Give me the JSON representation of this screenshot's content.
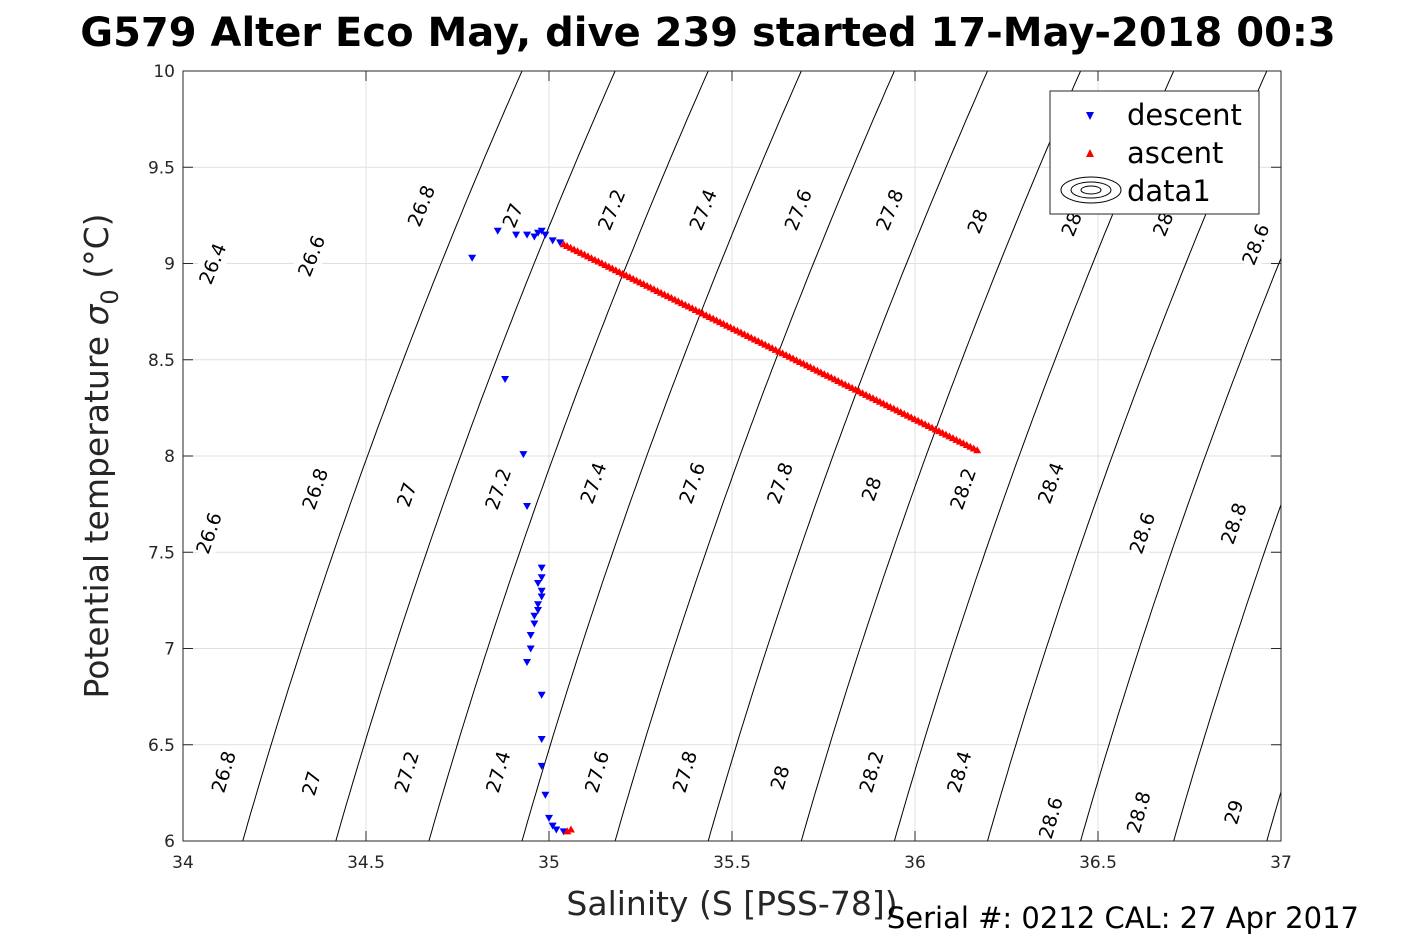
{
  "chart_data": {
    "type": "scatter",
    "title": "G579 Alter Eco May, dive 239 started 17-May-2018 00:3",
    "xlabel": "Salinity (S [PSS-78])",
    "ylabel_main": "Potential temperature ",
    "ylabel_sigma": "σ",
    "ylabel_sub": "0",
    "ylabel_unit": " (°C)",
    "xlim": [
      34,
      37
    ],
    "ylim": [
      6,
      10
    ],
    "xticks": [
      34,
      34.5,
      35,
      35.5,
      36,
      36.5,
      37
    ],
    "xtick_labels": [
      "34",
      "34.5",
      "35",
      "35.5",
      "36",
      "36.5",
      "37"
    ],
    "yticks": [
      6,
      6.5,
      7,
      7.5,
      8,
      8.5,
      9,
      9.5,
      10
    ],
    "ytick_labels": [
      "6",
      "6.5",
      "7",
      "7.5",
      "8",
      "8.5",
      "9",
      "9.5",
      "10"
    ],
    "grid": true,
    "legend_position": "top-right",
    "footer": "Serial #: 0212  CAL: 27 Apr 2017",
    "colors": {
      "descent": "#0000ff",
      "ascent": "#ff0000",
      "contour": "#000000",
      "grid": "#e0e0e0"
    },
    "series": [
      {
        "name": "descent",
        "marker": "triangle-down",
        "points": [
          [
            34.79,
            9.03
          ],
          [
            34.86,
            9.17
          ],
          [
            34.91,
            9.15
          ],
          [
            34.94,
            9.15
          ],
          [
            34.96,
            9.14
          ],
          [
            34.97,
            9.16
          ],
          [
            34.98,
            9.17
          ],
          [
            34.99,
            9.15
          ],
          [
            35.01,
            9.12
          ],
          [
            35.03,
            9.11
          ],
          [
            34.88,
            8.4
          ],
          [
            34.93,
            8.01
          ],
          [
            34.94,
            7.74
          ],
          [
            34.98,
            7.42
          ],
          [
            34.98,
            7.37
          ],
          [
            34.97,
            7.34
          ],
          [
            34.98,
            7.3
          ],
          [
            34.98,
            7.27
          ],
          [
            34.97,
            7.23
          ],
          [
            34.97,
            7.2
          ],
          [
            34.96,
            7.17
          ],
          [
            34.96,
            7.13
          ],
          [
            34.95,
            7.07
          ],
          [
            34.95,
            7.0
          ],
          [
            34.94,
            6.93
          ],
          [
            34.98,
            6.76
          ],
          [
            34.98,
            6.53
          ],
          [
            34.98,
            6.39
          ],
          [
            34.99,
            6.24
          ],
          [
            35.0,
            6.12
          ],
          [
            35.01,
            6.08
          ],
          [
            35.02,
            6.06
          ],
          [
            35.04,
            6.05
          ]
        ]
      },
      {
        "name": "ascent",
        "marker": "triangle-up",
        "from": [
          35.04,
          9.1
        ],
        "to": [
          36.17,
          8.03
        ],
        "count": 120,
        "extra_points": [
          [
            35.06,
            6.06
          ],
          [
            35.05,
            6.05
          ]
        ]
      },
      {
        "name": "data1",
        "marker": "contour"
      }
    ],
    "isopycnals": [
      26.4,
      26.6,
      26.8,
      27.0,
      27.2,
      27.4,
      27.6,
      27.8,
      28.0,
      28.2,
      28.4,
      28.6,
      28.8,
      29.0
    ],
    "isopycnal_labels": [
      {
        "text": "26.4",
        "s": 34.08,
        "t": 9.0
      },
      {
        "text": "26.6",
        "s": 34.35,
        "t": 9.04
      },
      {
        "text": "26.8",
        "s": 34.65,
        "t": 9.3
      },
      {
        "text": "27",
        "s": 34.9,
        "t": 9.25
      },
      {
        "text": "27.2",
        "s": 35.17,
        "t": 9.28
      },
      {
        "text": "27.4",
        "s": 35.42,
        "t": 9.28
      },
      {
        "text": "27.6",
        "s": 35.68,
        "t": 9.28
      },
      {
        "text": "27.8",
        "s": 35.93,
        "t": 9.28
      },
      {
        "text": "28",
        "s": 36.17,
        "t": 9.22
      },
      {
        "text": "28.",
        "s": 36.43,
        "t": 9.22
      },
      {
        "text": "28.",
        "s": 36.68,
        "t": 9.22
      },
      {
        "text": "28.6",
        "s": 36.93,
        "t": 9.1
      },
      {
        "text": "26.6",
        "s": 34.07,
        "t": 7.6
      },
      {
        "text": "26.8",
        "s": 34.36,
        "t": 7.83
      },
      {
        "text": "27",
        "s": 34.61,
        "t": 7.8
      },
      {
        "text": "27.2",
        "s": 34.86,
        "t": 7.83
      },
      {
        "text": "27.4",
        "s": 35.12,
        "t": 7.86
      },
      {
        "text": "27.6",
        "s": 35.39,
        "t": 7.86
      },
      {
        "text": "27.8",
        "s": 35.63,
        "t": 7.86
      },
      {
        "text": "28",
        "s": 35.88,
        "t": 7.83
      },
      {
        "text": "28.2",
        "s": 36.13,
        "t": 7.83
      },
      {
        "text": "28.4",
        "s": 36.37,
        "t": 7.86
      },
      {
        "text": "28.6",
        "s": 36.62,
        "t": 7.6
      },
      {
        "text": "28.8",
        "s": 36.87,
        "t": 7.65
      },
      {
        "text": "26.8",
        "s": 34.11,
        "t": 6.36
      },
      {
        "text": "27",
        "s": 34.35,
        "t": 6.3
      },
      {
        "text": "27.2",
        "s": 34.61,
        "t": 6.36
      },
      {
        "text": "27.4",
        "s": 34.86,
        "t": 6.36
      },
      {
        "text": "27.6",
        "s": 35.13,
        "t": 6.36
      },
      {
        "text": "27.8",
        "s": 35.37,
        "t": 6.36
      },
      {
        "text": "28",
        "s": 35.63,
        "t": 6.33
      },
      {
        "text": "28.2",
        "s": 35.88,
        "t": 6.36
      },
      {
        "text": "28.4",
        "s": 36.12,
        "t": 6.36
      },
      {
        "text": "28.6",
        "s": 36.37,
        "t": 6.12
      },
      {
        "text": "28.8",
        "s": 36.61,
        "t": 6.15
      },
      {
        "text": "29",
        "s": 36.87,
        "t": 6.15
      }
    ]
  }
}
